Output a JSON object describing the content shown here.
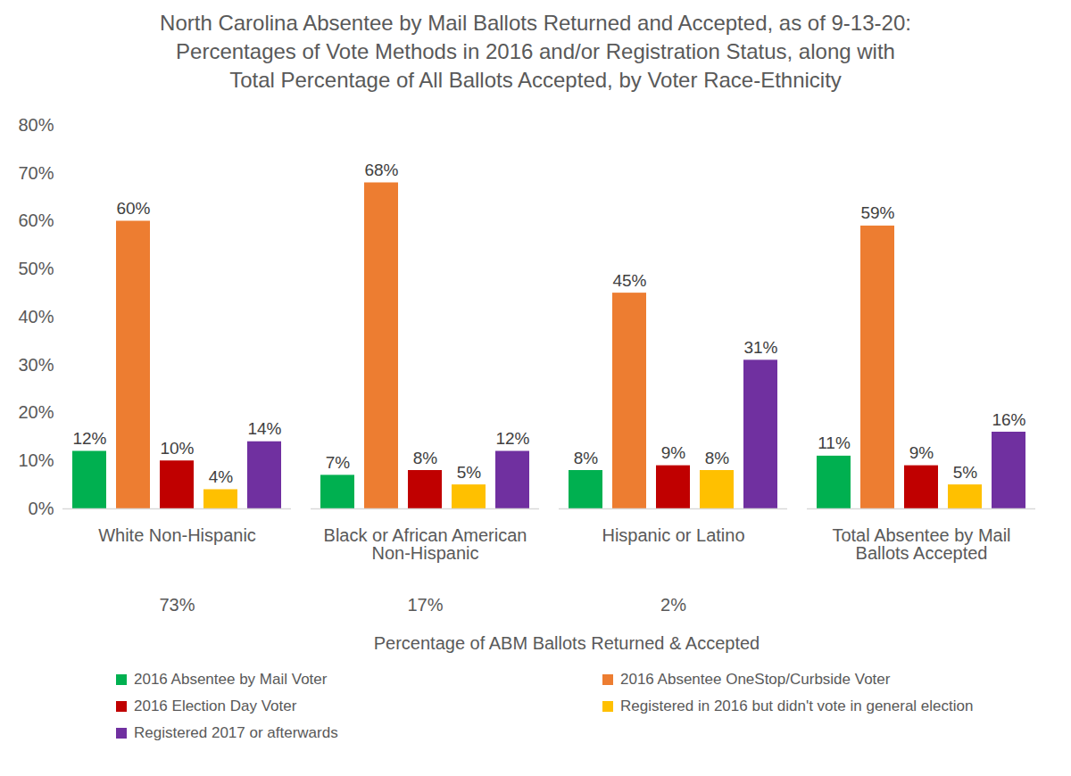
{
  "chart_data": {
    "type": "bar",
    "title": "North Carolina Absentee by Mail Ballots Returned and Accepted, as of 9-13-20:\nPercentages of Vote Methods in 2016 and/or Registration Status, along with\nTotal Percentage of All Ballots Accepted, by Voter Race-Ethnicity",
    "xlabel": "Percentage of ABM Ballots Returned & Accepted",
    "categories": [
      "White Non-Hispanic",
      "Black or African American Non-Hispanic",
      "Hispanic or Latino",
      "Total Absentee by Mail Ballots Accepted"
    ],
    "category_shares": {
      "values": [
        73,
        17,
        2,
        null
      ],
      "labels": [
        "73%",
        "17%",
        "2%",
        null
      ]
    },
    "series": [
      {
        "name": "2016 Absentee by Mail Voter",
        "color": "#00b050",
        "values": [
          12,
          7,
          8,
          11
        ],
        "value_labels": [
          "12%",
          "7%",
          "8%",
          "11%"
        ]
      },
      {
        "name": "2016 Absentee OneStop/Curbside Voter",
        "color": "#ed7d31",
        "values": [
          60,
          68,
          45,
          59
        ],
        "value_labels": [
          "60%",
          "68%",
          "45%",
          "59%"
        ]
      },
      {
        "name": "2016 Election Day Voter",
        "color": "#c00000",
        "values": [
          10,
          8,
          9,
          9
        ],
        "value_labels": [
          "10%",
          "8%",
          "9%",
          "9%"
        ]
      },
      {
        "name": "Registered in 2016 but didn't vote in general election",
        "color": "#ffc000",
        "values": [
          4,
          5,
          8,
          5
        ],
        "value_labels": [
          "4%",
          "5%",
          "8%",
          "5%"
        ]
      },
      {
        "name": "Registered 2017 or afterwards",
        "color": "#7030a0",
        "values": [
          14,
          12,
          31,
          16
        ],
        "value_labels": [
          "14%",
          "12%",
          "31%",
          "16%"
        ]
      }
    ],
    "ylim": [
      0,
      80
    ],
    "yticks": [
      {
        "value": 0,
        "label": "0%"
      },
      {
        "value": 10,
        "label": "10%"
      },
      {
        "value": 20,
        "label": "20%"
      },
      {
        "value": 30,
        "label": "30%"
      },
      {
        "value": 40,
        "label": "40%"
      },
      {
        "value": 50,
        "label": "50%"
      },
      {
        "value": 60,
        "label": "60%"
      },
      {
        "value": 70,
        "label": "70%"
      },
      {
        "value": 80,
        "label": "80%"
      }
    ],
    "grid": false,
    "legend": "bottom",
    "data_labels": true
  }
}
